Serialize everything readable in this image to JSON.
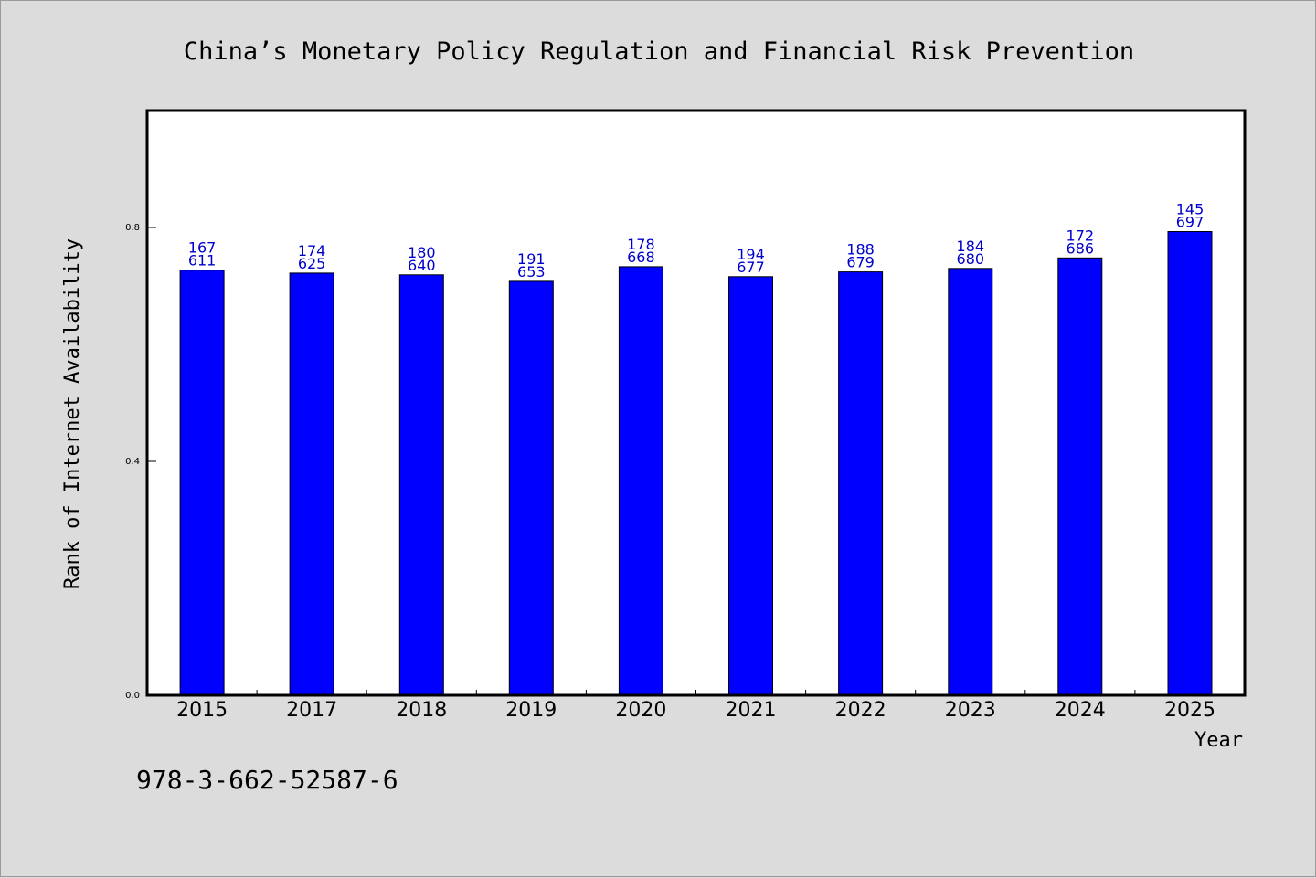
{
  "chart_data": {
    "type": "bar",
    "title": "China’s Monetary Policy Regulation and Financial Risk Prevention",
    "xlabel": "Year",
    "ylabel": "Rank of Internet Availability",
    "ylim": [
      0,
      1.0
    ],
    "yticks": [
      "0.0",
      "0.4",
      "0.8"
    ],
    "ytick_values": [
      0.0,
      0.4,
      0.8
    ],
    "categories": [
      "2015",
      "2017",
      "2018",
      "2019",
      "2020",
      "2021",
      "2022",
      "2023",
      "2024",
      "2025"
    ],
    "values": [
      0.727,
      0.722,
      0.719,
      0.708,
      0.733,
      0.716,
      0.724,
      0.73,
      0.748,
      0.793
    ],
    "label_top": [
      "167",
      "174",
      "180",
      "191",
      "178",
      "194",
      "188",
      "184",
      "172",
      "145"
    ],
    "label_bottom": [
      "611",
      "625",
      "640",
      "653",
      "668",
      "677",
      "679",
      "680",
      "686",
      "697"
    ],
    "bar_color": "#0000ff",
    "label_color": "#0000cc",
    "grid": false,
    "legend": "none"
  },
  "footer": {
    "code": "978-3-662-52587-6"
  }
}
